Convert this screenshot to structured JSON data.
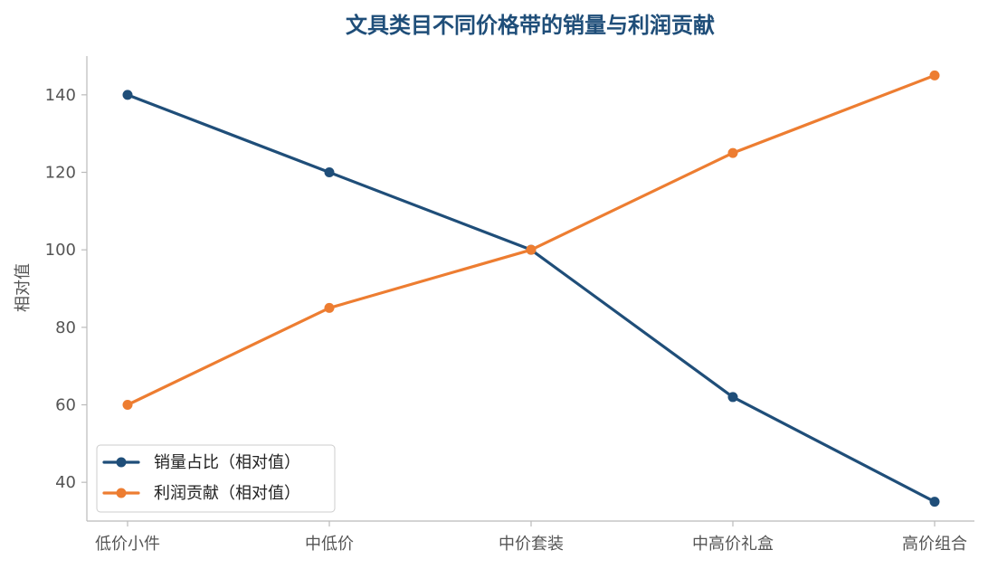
{
  "chart_data": {
    "type": "line",
    "title": "文具类目不同价格带的销量与利润贡献",
    "xlabel": "",
    "ylabel": "相对值",
    "categories": [
      "低价小件",
      "中低价",
      "中价套装",
      "中高价礼盒",
      "高价组合"
    ],
    "ylim": [
      30,
      150
    ],
    "yticks": [
      40,
      60,
      80,
      100,
      120,
      140
    ],
    "grid": false,
    "legend_position": "bottom-left",
    "series": [
      {
        "name": "销量占比（相对值）",
        "values": [
          140,
          120,
          100,
          62,
          35
        ],
        "color": "#1f4e79"
      },
      {
        "name": "利润贡献（相对值）",
        "values": [
          60,
          85,
          100,
          125,
          145
        ],
        "color": "#ed7d31"
      }
    ],
    "title_color": "#1f4e79",
    "axis_color": "#bbbbbb"
  }
}
